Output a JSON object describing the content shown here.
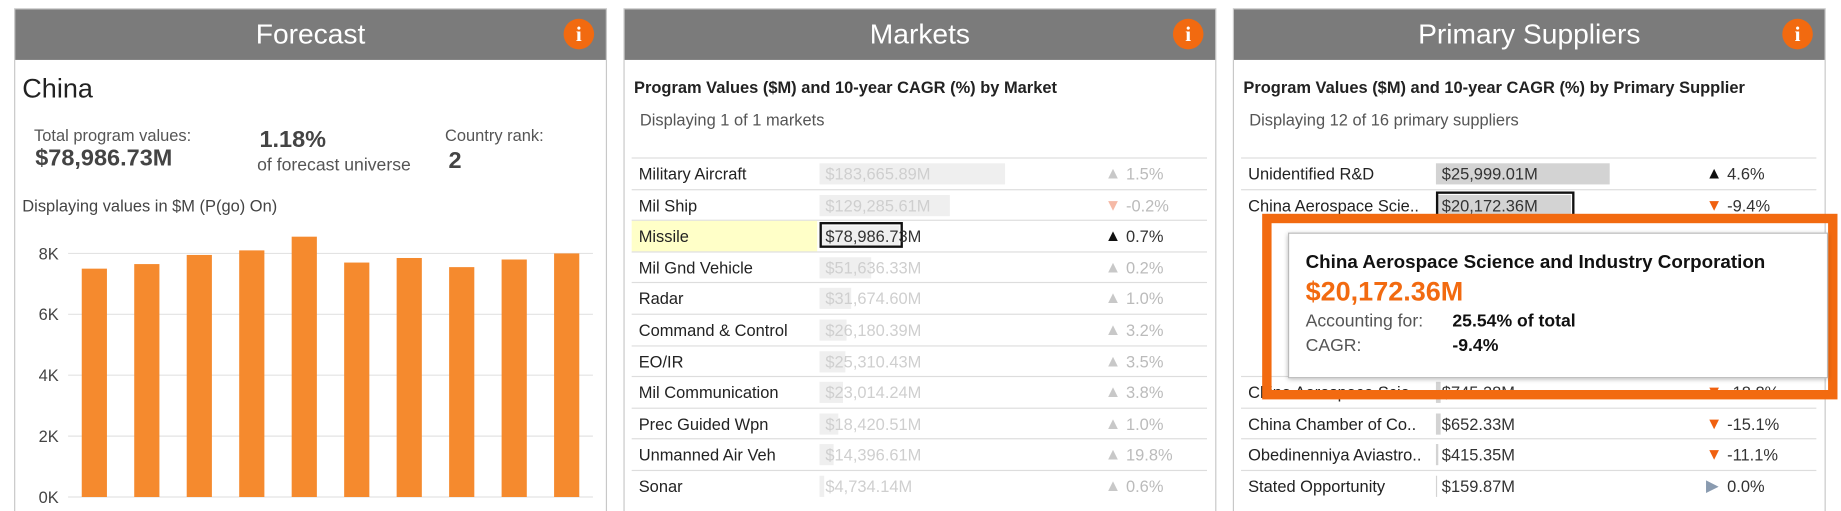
{
  "forecast": {
    "title": "Forecast",
    "country": "China",
    "total_label": "Total program values:",
    "total_value": "$78,986.73M",
    "share": "1.18%",
    "share_label": "of forecast universe",
    "rank_label": "Country rank:",
    "rank": "2",
    "note": "Displaying values in $M (P(go) On)"
  },
  "chart_data": {
    "type": "bar",
    "values": [
      7500,
      7650,
      7950,
      8100,
      8550,
      7700,
      7850,
      7550,
      7800,
      8000
    ],
    "color": "#f58a2e",
    "ylim": [
      -460,
      8800
    ],
    "yticks": [
      {
        "value": 0,
        "label": "0K"
      },
      {
        "value": 2000,
        "label": "2K"
      },
      {
        "value": 4000,
        "label": "4K"
      },
      {
        "value": 6000,
        "label": "6K"
      },
      {
        "value": 8000,
        "label": "8K"
      }
    ],
    "grid": true
  },
  "markets": {
    "title": "Markets",
    "subtitle": "Program Values ($M) and 10-year CAGR (%) by Market",
    "note": "Displaying 1 of 1 markets",
    "selected_index": 2,
    "rows": [
      {
        "name": "Military Aircraft",
        "value": 183665.89,
        "label": "$183,665.89M",
        "cagr": "1.5%",
        "trend": "up"
      },
      {
        "name": "Mil Ship",
        "value": 129285.61,
        "label": "$129,285.61M",
        "cagr": "-0.2%",
        "trend": "down"
      },
      {
        "name": "Missile",
        "value": 78986.73,
        "label": "$78,986.73M",
        "cagr": "0.7%",
        "trend": "up"
      },
      {
        "name": "Mil Gnd Vehicle",
        "value": 51636.33,
        "label": "$51,636.33M",
        "cagr": "0.2%",
        "trend": "up"
      },
      {
        "name": "Radar",
        "value": 31674.6,
        "label": "$31,674.60M",
        "cagr": "1.0%",
        "trend": "up"
      },
      {
        "name": "Command & Control",
        "value": 26180.39,
        "label": "$26,180.39M",
        "cagr": "3.2%",
        "trend": "up"
      },
      {
        "name": "EO/IR",
        "value": 25310.43,
        "label": "$25,310.43M",
        "cagr": "3.5%",
        "trend": "up"
      },
      {
        "name": "Mil Communication",
        "value": 23014.24,
        "label": "$23,014.24M",
        "cagr": "3.8%",
        "trend": "up"
      },
      {
        "name": "Prec Guided Wpn",
        "value": 18420.51,
        "label": "$18,420.51M",
        "cagr": "1.0%",
        "trend": "up"
      },
      {
        "name": "Unmanned Air Veh",
        "value": 14396.61,
        "label": "$14,396.61M",
        "cagr": "19.8%",
        "trend": "up"
      },
      {
        "name": "Sonar",
        "value": 4734.14,
        "label": "$4,734.14M",
        "cagr": "0.6%",
        "trend": "up"
      }
    ]
  },
  "suppliers": {
    "title": "Primary Suppliers",
    "subtitle": "Program Values ($M) and 10-year CAGR (%) by Primary Supplier",
    "note": "Displaying 12 of 16 primary suppliers",
    "selected_index": 1,
    "rows": [
      {
        "name": "Unidentified R&D",
        "value": 25999.01,
        "label": "$25,999.01M",
        "cagr": "4.6%",
        "trend": "up"
      },
      {
        "name": "China Aerospace Scie..",
        "value": 20172.36,
        "label": "$20,172.36M",
        "cagr": "-9.4%",
        "trend": "down"
      },
      {
        "name": "China Aerospace Scie..",
        "value": 745.28,
        "label": "$745.28M",
        "cagr": "-18.8%",
        "trend": "down"
      },
      {
        "name": "China Chamber of Co..",
        "value": 652.33,
        "label": "$652.33M",
        "cagr": "-15.1%",
        "trend": "down"
      },
      {
        "name": "Obedinenniya Aviastro..",
        "value": 415.35,
        "label": "$415.35M",
        "cagr": "-11.1%",
        "trend": "down"
      },
      {
        "name": "Stated Opportunity",
        "value": 159.87,
        "label": "$159.87M",
        "cagr": "0.0%",
        "trend": "flat"
      }
    ]
  },
  "tooltip": {
    "title": "China Aerospace Science and Industry Corporation",
    "value": "$20,172.36M",
    "share_label": "Accounting for:",
    "share": "25.54% of total",
    "cagr_label": "CAGR:",
    "cagr": "-9.4%"
  }
}
